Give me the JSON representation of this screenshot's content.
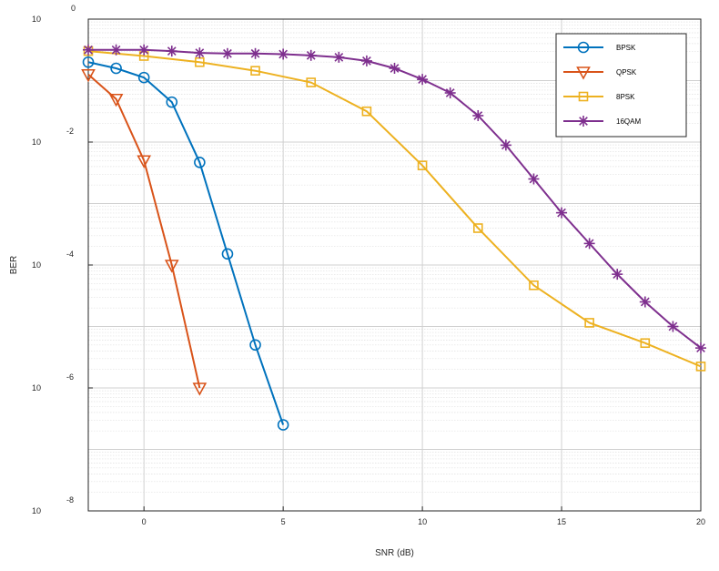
{
  "chart_data": {
    "type": "line",
    "title": "",
    "xlabel": "SNR (dB)",
    "ylabel": "BER",
    "xlim": [
      -2,
      20
    ],
    "ylim_log10": [
      -8,
      0
    ],
    "yscale": "log",
    "grid": true,
    "minor_grid": true,
    "legend_position": "top-right",
    "xticks": [
      0,
      5,
      10,
      15,
      20
    ],
    "yticks": [
      {
        "base": "10",
        "exp": "0"
      },
      {
        "base": "10",
        "exp": "-2"
      },
      {
        "base": "10",
        "exp": "-4"
      },
      {
        "base": "10",
        "exp": "-6"
      },
      {
        "base": "10",
        "exp": "-8"
      }
    ],
    "series": [
      {
        "name": "BPSK",
        "color": "#0072BD",
        "marker": "circle",
        "x": [
          -2,
          -1,
          0,
          1,
          2,
          3,
          4,
          5
        ],
        "log10_y": [
          -0.7,
          -0.8,
          -0.95,
          -1.35,
          -2.33,
          -3.82,
          -5.3,
          -6.6
        ]
      },
      {
        "name": "QPSK",
        "color": "#D95319",
        "marker": "triangle-down",
        "x": [
          -2,
          -1,
          0,
          1,
          2
        ],
        "log10_y": [
          -0.9,
          -1.3,
          -2.3,
          -4.0,
          -6.0
        ]
      },
      {
        "name": "8PSK",
        "color": "#EDB120",
        "marker": "square",
        "x": [
          -2,
          0,
          2,
          4,
          6,
          8,
          10,
          12,
          14,
          16,
          18,
          20
        ],
        "log10_y": [
          -0.52,
          -0.6,
          -0.7,
          -0.84,
          -1.03,
          -1.5,
          -2.38,
          -3.4,
          -4.33,
          -4.94,
          -5.27,
          -5.65
        ]
      },
      {
        "name": "16QAM",
        "color": "#7E2F8E",
        "marker": "asterisk",
        "x": [
          -2,
          -1,
          0,
          1,
          2,
          3,
          4,
          5,
          6,
          7,
          8,
          9,
          10,
          11,
          12,
          13,
          14,
          15,
          16,
          17,
          18,
          19,
          20
        ],
        "log10_y": [
          -0.5,
          -0.5,
          -0.5,
          -0.52,
          -0.55,
          -0.56,
          -0.56,
          -0.57,
          -0.59,
          -0.62,
          -0.68,
          -0.8,
          -0.98,
          -1.2,
          -1.57,
          -2.05,
          -2.6,
          -3.15,
          -3.65,
          -4.15,
          -4.6,
          -5.0,
          -5.35
        ]
      }
    ]
  }
}
